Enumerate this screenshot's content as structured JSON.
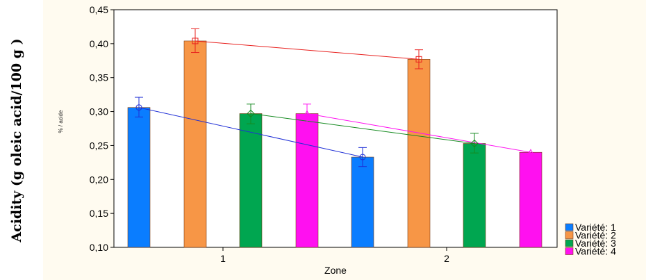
{
  "outer_ylabel": "Acidity (g oleic acid/100 g )",
  "chart_data": {
    "type": "bar",
    "xlabel": "Zone",
    "ylabel": "% / acide",
    "categories": [
      "1",
      "2"
    ],
    "ylim": [
      0.1,
      0.45
    ],
    "yticks": [
      "0,10",
      "0,15",
      "0,20",
      "0,25",
      "0,30",
      "0,35",
      "0,40",
      "0,45"
    ],
    "ytick_values": [
      0.1,
      0.15,
      0.2,
      0.25,
      0.3,
      0.35,
      0.4,
      0.45
    ],
    "grid": false,
    "legend_position": "bottom-right",
    "series": [
      {
        "name": "Variété: 1",
        "values": [
          0.306,
          0.233
        ],
        "err_low": [
          0.292,
          0.219
        ],
        "err_high": [
          0.321,
          0.247
        ],
        "color": "#0a7dff",
        "line_color": "#1f2fd6",
        "marker": "circle"
      },
      {
        "name": "Variété: 2",
        "values": [
          0.404,
          0.377
        ],
        "err_low": [
          0.387,
          0.363
        ],
        "err_high": [
          0.422,
          0.391
        ],
        "color": "#f79646",
        "line_color": "#e8201e",
        "marker": "square"
      },
      {
        "name": "Variété: 3",
        "values": [
          0.297,
          0.253
        ],
        "err_low": [
          0.282,
          0.239
        ],
        "err_high": [
          0.311,
          0.268
        ],
        "color": "#00a650",
        "line_color": "#158a20",
        "marker": "diamond"
      },
      {
        "name": "Variété: 4",
        "values": [
          0.297,
          0.24
        ],
        "err_low": [
          0.282,
          0.24
        ],
        "err_high": [
          0.311,
          0.24
        ],
        "color": "#ff10f0",
        "line_color": "#ff10f0",
        "marker": "triangle"
      }
    ]
  }
}
